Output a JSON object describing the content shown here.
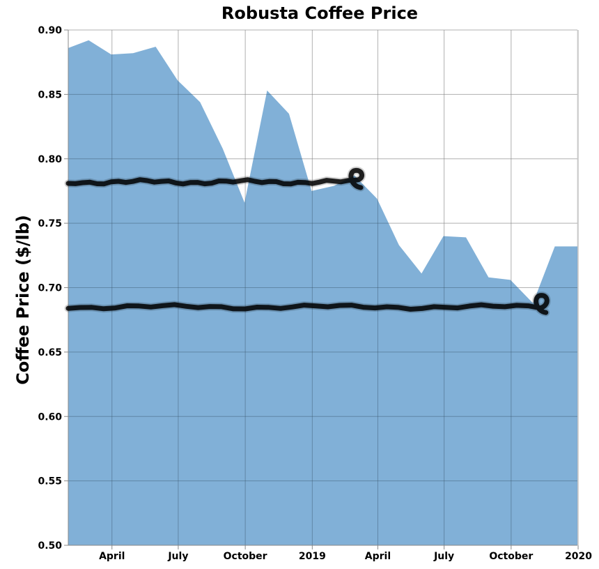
{
  "chart_data": {
    "type": "area",
    "title": "Robusta Coffee Price",
    "xlabel": "",
    "ylabel": "Coffee Price ($/lb)",
    "ylim": [
      0.5,
      0.9
    ],
    "xlim": [
      "2018-01-31",
      "2019-12-31"
    ],
    "grid": true,
    "color": "#4c8fc6",
    "y_ticks": [
      "0.50",
      "0.55",
      "0.60",
      "0.65",
      "0.70",
      "0.75",
      "0.80",
      "0.85",
      "0.90"
    ],
    "x_ticks": [
      "April",
      "July",
      "October",
      "2019",
      "April",
      "July",
      "October",
      "2020"
    ],
    "x_tick_dates": [
      "2018-04-01",
      "2018-07-01",
      "2018-10-01",
      "2019-01-01",
      "2019-04-01",
      "2019-07-01",
      "2019-10-01",
      "2020-01-01"
    ],
    "x": [
      "2018-01-31",
      "2018-02-28",
      "2018-03-31",
      "2018-04-30",
      "2018-05-31",
      "2018-06-30",
      "2018-07-31",
      "2018-08-31",
      "2018-09-30",
      "2018-10-31",
      "2018-11-30",
      "2018-12-31",
      "2019-01-31",
      "2019-02-28",
      "2019-03-31",
      "2019-04-30",
      "2019-05-31",
      "2019-06-30",
      "2019-07-31",
      "2019-08-31",
      "2019-09-30",
      "2019-10-31",
      "2019-11-30",
      "2019-12-31"
    ],
    "values": [
      0.886,
      0.892,
      0.881,
      0.882,
      0.887,
      0.861,
      0.844,
      0.808,
      0.766,
      0.853,
      0.835,
      0.775,
      0.779,
      0.787,
      0.769,
      0.733,
      0.711,
      0.74,
      0.739,
      0.708,
      0.706,
      0.688,
      0.732,
      0.732
    ],
    "annotations": [
      {
        "type": "hand-drawn-line",
        "color": "#000000",
        "level": 0.782,
        "from": "2018-01-31",
        "to": "2019-03-01",
        "ends_with_loop": true
      },
      {
        "type": "hand-drawn-line",
        "color": "#000000",
        "level": 0.685,
        "from": "2018-01-31",
        "to": "2019-11-10",
        "ends_with_loop": true
      }
    ]
  }
}
